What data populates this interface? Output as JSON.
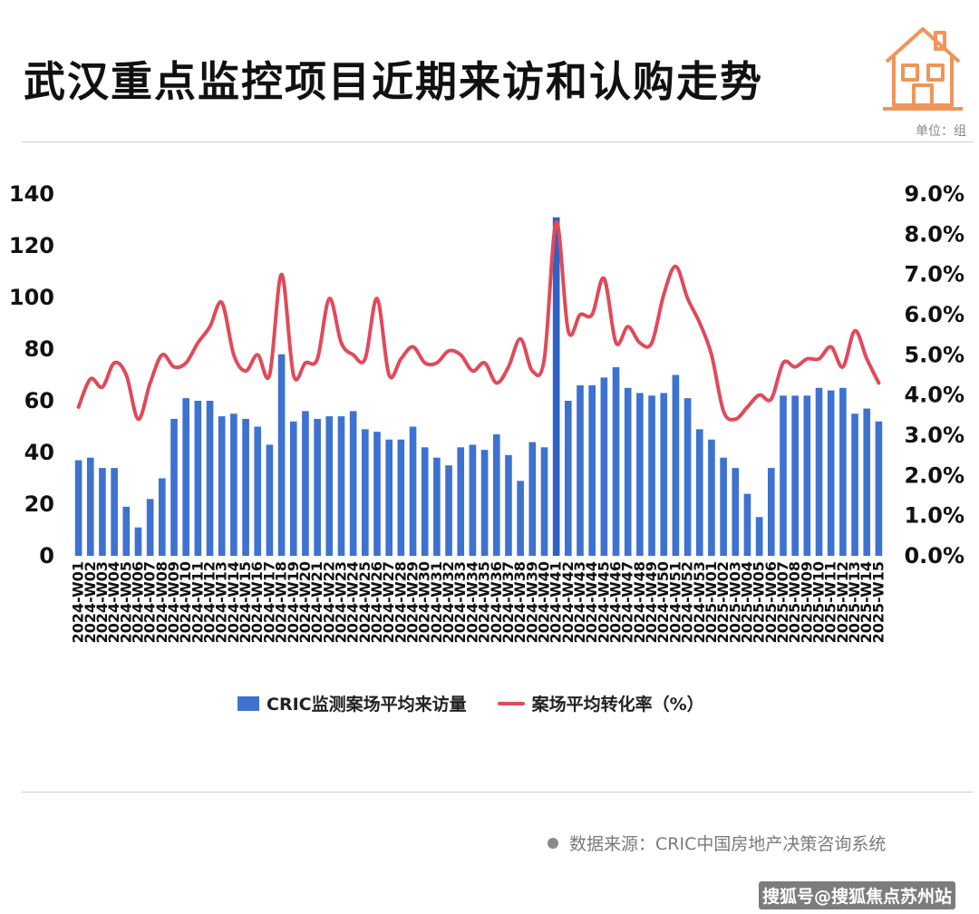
{
  "header": {
    "title": "武汉重点监控项目近期来访和认购走势",
    "unit_label": "单位：组"
  },
  "icon": {
    "house": "house-icon"
  },
  "colors": {
    "bar": "#3e72d0",
    "bar_highlight": "#2f62c4",
    "line": "#e04a5a",
    "accent": "#f0955a"
  },
  "legend": {
    "bar_label": "CRIC监测案场平均来访量",
    "line_label": "案场平均转化率（%）"
  },
  "source_text": "数据来源：CRIC中国房地产决策咨询系统",
  "footer_text": "搜狐号@搜狐焦点苏州站",
  "chart_data": {
    "type": "bar+line",
    "categories": [
      "2024-W01",
      "2024-W02",
      "2024-W03",
      "2024-W04",
      "2024-W05",
      "2024-W06",
      "2024-W07",
      "2024-W08",
      "2024-W09",
      "2024-W10",
      "2024-W11",
      "2024-W12",
      "2024-W13",
      "2024-W14",
      "2024-W15",
      "2024-W16",
      "2024-W17",
      "2024-W18",
      "2024-W19",
      "2024-W20",
      "2024-W21",
      "2024-W22",
      "2024-W23",
      "2024-W24",
      "2024-W25",
      "2024-W26",
      "2024-W27",
      "2024-W28",
      "2024-W29",
      "2024-W30",
      "2024-W31",
      "2024-W32",
      "2024-W33",
      "2024-W34",
      "2024-W35",
      "2024-W36",
      "2024-W37",
      "2024-W38",
      "2024-W39",
      "2024-W40",
      "2024-W41",
      "2024-W42",
      "2024-W43",
      "2024-W44",
      "2024-W45",
      "2024-W46",
      "2024-W47",
      "2024-W48",
      "2024-W49",
      "2024-W50",
      "2024-W51",
      "2024-W52",
      "2024-W53",
      "2025-W01",
      "2025-W02",
      "2025-W03",
      "2025-W04",
      "2025-W05",
      "2025-W06",
      "2025-W07",
      "2025-W08",
      "2025-W09",
      "2025-W10",
      "2025-W11",
      "2025-W12",
      "2025-W13",
      "2025-W14",
      "2025-W15"
    ],
    "x_tick_labels": [
      "2024-W01",
      "2024-W02",
      "2024-W03",
      "2024-W04",
      "2024-W05",
      "2024-W06",
      "2024-W07",
      "2024-W08",
      "2024-W09",
      "2024-W10",
      "2024-W11",
      "2024-W12",
      "2024-W13",
      "2024-W14",
      "2024-W15",
      "2024-W16",
      "2024-W17",
      "2024-W18",
      "2024-W19",
      "2024-W20",
      "2024-W21",
      "2024-W22",
      "2024-W23",
      "2024-W24",
      "2024-W25",
      "2024-W26",
      "2024-W27",
      "2024-W28",
      "2024-W29",
      "2024-W30",
      "2024-W31",
      "2024-W32",
      "2024-W33",
      "2024-W34",
      "2024-W35",
      "2024-W36",
      "2024-W37",
      "2024-W38",
      "2024-W39",
      "2024-W40",
      "2024-W41",
      "2024-W42",
      "2024-W43",
      "2024-W44",
      "2024-W45",
      "2024-W46",
      "2024-W47",
      "2024-W48",
      "2024-W49",
      "2024-W50",
      "2024-W51",
      "2024-W52",
      "2024-W53",
      "2025-W01",
      "2025-W02",
      "2025-W03",
      "2025-W04",
      "2025-W05",
      "2025-W06",
      "2025-W07",
      "2025-W08",
      "2025-W09",
      "2025-W10",
      "2025-W11",
      "2025-W12",
      "2025-W13",
      "2025-W14",
      "2025-W15"
    ],
    "series": [
      {
        "name": "CRIC监测案场平均来访量",
        "type": "bar",
        "axis": "left",
        "values": [
          37,
          38,
          34,
          34,
          19,
          11,
          22,
          30,
          53,
          61,
          60,
          60,
          54,
          55,
          53,
          50,
          43,
          78,
          52,
          56,
          53,
          54,
          54,
          56,
          49,
          48,
          45,
          45,
          50,
          42,
          38,
          35,
          42,
          43,
          41,
          47,
          39,
          29,
          44,
          42,
          131,
          60,
          66,
          66,
          69,
          73,
          65,
          63,
          62,
          63,
          70,
          61,
          49,
          45,
          38,
          34,
          24,
          15,
          34,
          62,
          62,
          62,
          65,
          64,
          65,
          55,
          57,
          52
        ]
      },
      {
        "name": "案场平均转化率（%）",
        "type": "line",
        "axis": "right",
        "values": [
          3.7,
          4.4,
          4.2,
          4.8,
          4.5,
          3.4,
          4.3,
          5.0,
          4.7,
          4.8,
          5.3,
          5.7,
          6.3,
          5.0,
          4.6,
          5.0,
          4.5,
          7.0,
          4.5,
          4.8,
          4.9,
          6.4,
          5.3,
          5.0,
          4.9,
          6.4,
          4.5,
          4.9,
          5.2,
          4.8,
          4.8,
          5.1,
          5.0,
          4.6,
          4.8,
          4.3,
          4.7,
          5.4,
          4.6,
          4.9,
          8.3,
          5.6,
          6.0,
          6.0,
          6.9,
          5.3,
          5.7,
          5.3,
          5.3,
          6.5,
          7.2,
          6.4,
          5.8,
          5.0,
          3.6,
          3.4,
          3.7,
          4.0,
          3.9,
          4.8,
          4.7,
          4.9,
          4.9,
          5.2,
          4.7,
          5.6,
          4.9,
          4.3
        ]
      }
    ],
    "y_left": {
      "ticks": [
        "0",
        "20",
        "40",
        "60",
        "80",
        "100",
        "120",
        "140"
      ],
      "lim": [
        0,
        140
      ]
    },
    "y_right": {
      "ticks": [
        "0.0%",
        "1.0%",
        "2.0%",
        "3.0%",
        "4.0%",
        "5.0%",
        "6.0%",
        "7.0%",
        "8.0%",
        "9.0%"
      ],
      "lim": [
        0,
        9
      ]
    },
    "grid": false,
    "legend_position": "bottom"
  }
}
